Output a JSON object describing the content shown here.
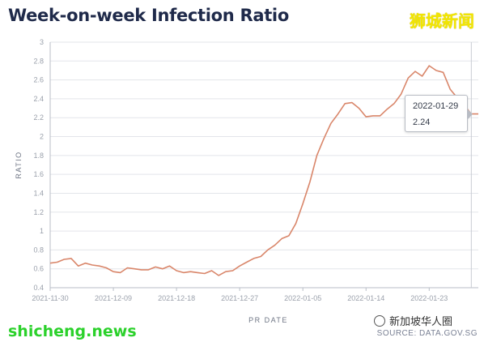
{
  "header": {
    "title": "Week-on-week Infection Ratio"
  },
  "watermarks": {
    "top_right": "狮城新闻",
    "bottom_left": "shicheng.news",
    "bottom_right": "新加坡华人圈"
  },
  "source": "SOURCE: DATA.GOV.SG",
  "tooltip": {
    "date": "2022-01-29",
    "value": "2.24"
  },
  "colors": {
    "line": "#d9866a",
    "title": "#1f2a4a",
    "grid": "#e3e5ea"
  },
  "chart_data": {
    "type": "line",
    "title": "Week-on-week Infection Ratio",
    "xlabel": "PR DATE",
    "ylabel": "RATIO",
    "ylim": [
      0.4,
      3
    ],
    "yticks": [
      "0.4",
      "0.6",
      "0.8",
      "1",
      "1.2",
      "1.4",
      "1.6",
      "1.8",
      "2",
      "2.2",
      "2.4",
      "2.6",
      "2.8",
      "3"
    ],
    "xticks": [
      "2021-11-30",
      "2021-12-09",
      "2021-12-18",
      "2021-12-27",
      "2022-01-05",
      "2022-01-14",
      "2022-01-23"
    ],
    "xrange": [
      "2021-11-30",
      "2022-01-30"
    ],
    "grid": true,
    "series": [
      {
        "x": [
          "2021-11-30",
          "2021-12-01",
          "2021-12-02",
          "2021-12-03",
          "2021-12-04",
          "2021-12-05",
          "2021-12-06",
          "2021-12-07",
          "2021-12-08",
          "2021-12-09",
          "2021-12-10",
          "2021-12-11",
          "2021-12-12",
          "2021-12-13",
          "2021-12-14",
          "2021-12-15",
          "2021-12-16",
          "2021-12-17",
          "2021-12-18",
          "2021-12-19",
          "2021-12-20",
          "2021-12-21",
          "2021-12-22",
          "2021-12-23",
          "2021-12-24",
          "2021-12-25",
          "2021-12-26",
          "2021-12-27",
          "2021-12-28",
          "2021-12-29",
          "2021-12-30",
          "2021-12-31",
          "2022-01-01",
          "2022-01-02",
          "2022-01-03",
          "2022-01-04",
          "2022-01-05",
          "2022-01-06",
          "2022-01-07",
          "2022-01-08",
          "2022-01-09",
          "2022-01-10",
          "2022-01-11",
          "2022-01-12",
          "2022-01-13",
          "2022-01-14",
          "2022-01-15",
          "2022-01-16",
          "2022-01-17",
          "2022-01-18",
          "2022-01-19",
          "2022-01-20",
          "2022-01-21",
          "2022-01-22",
          "2022-01-23",
          "2022-01-24",
          "2022-01-25",
          "2022-01-26",
          "2022-01-27",
          "2022-01-28",
          "2022-01-29",
          "2022-01-30"
        ],
        "values": [
          0.66,
          0.67,
          0.7,
          0.71,
          0.63,
          0.66,
          0.64,
          0.63,
          0.61,
          0.57,
          0.56,
          0.61,
          0.6,
          0.59,
          0.59,
          0.62,
          0.6,
          0.63,
          0.58,
          0.56,
          0.57,
          0.56,
          0.55,
          0.58,
          0.53,
          0.57,
          0.58,
          0.63,
          0.67,
          0.71,
          0.73,
          0.8,
          0.85,
          0.92,
          0.95,
          1.08,
          1.29,
          1.52,
          1.8,
          1.98,
          2.14,
          2.24,
          2.35,
          2.36,
          2.3,
          2.21,
          2.22,
          2.22,
          2.29,
          2.35,
          2.45,
          2.62,
          2.69,
          2.64,
          2.75,
          2.7,
          2.68,
          2.5,
          2.41,
          2.33,
          2.24,
          2.24
        ]
      }
    ]
  }
}
